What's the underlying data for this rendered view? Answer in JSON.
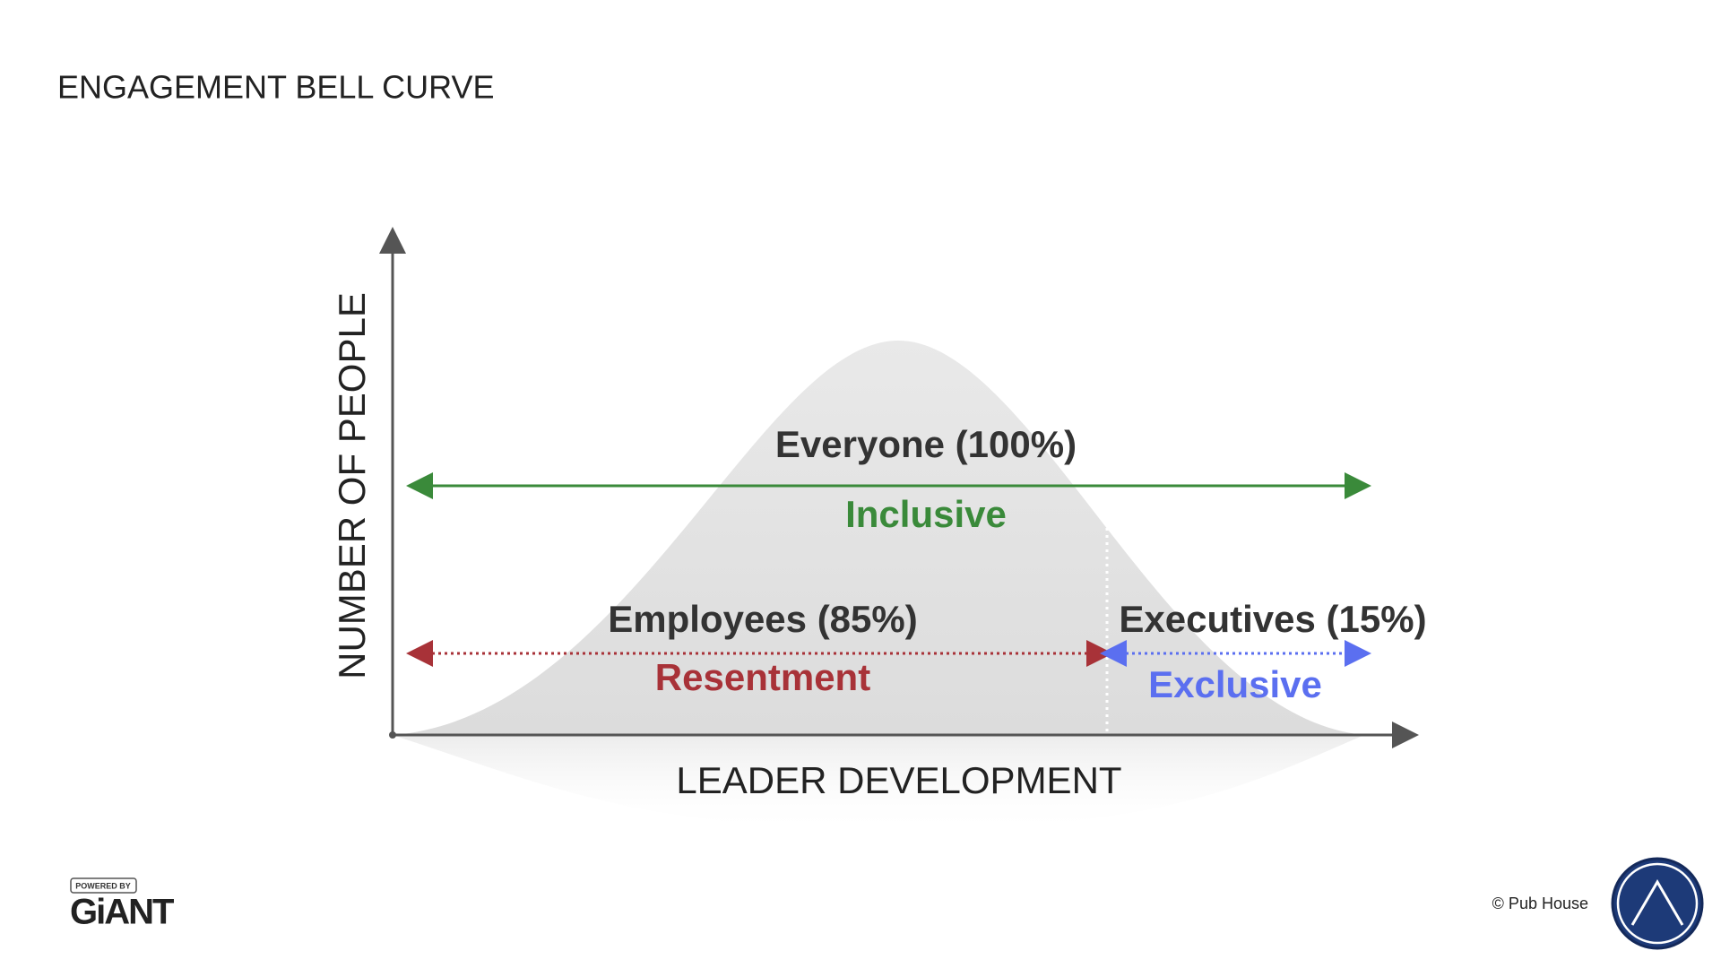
{
  "header": {
    "title": "ENGAGEMENT BELL CURVE"
  },
  "axes": {
    "y_label": "NUMBER OF PEOPLE",
    "x_label": "LEADER DEVELOPMENT"
  },
  "groups": [
    {
      "label": "Everyone (100%)",
      "sublabel": "Inclusive"
    },
    {
      "label": "Employees (85%)",
      "sublabel": "Resentment"
    },
    {
      "label": "Executives (15%)",
      "sublabel": "Exclusive"
    }
  ],
  "footer": {
    "powered_by": "POWERED BY",
    "brand": "GiANT",
    "copyright": "© Pub House"
  }
}
